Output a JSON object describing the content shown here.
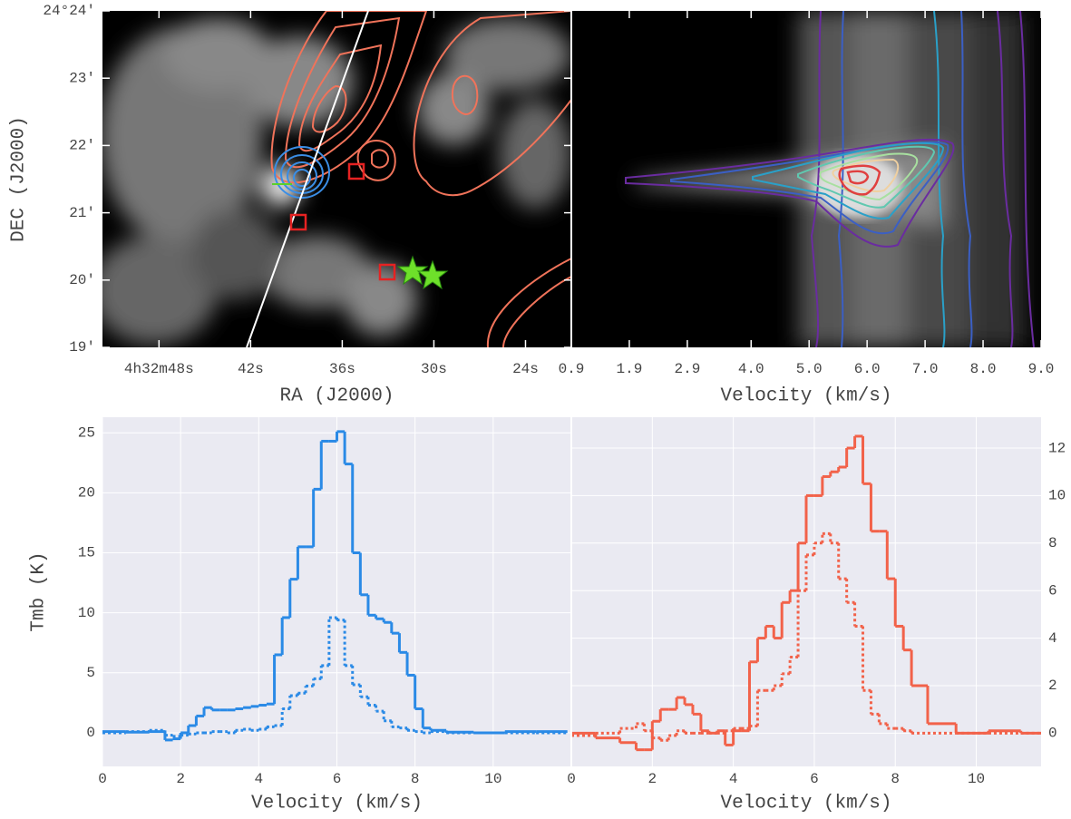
{
  "chart_data": [
    {
      "type": "image",
      "xlabel": "RA (J2000)",
      "ylabel": "DEC (J2000)",
      "xlim": [
        51.7,
        21.0
      ],
      "xticks": [
        {
          "value": 48,
          "label": "4h32m48s"
        },
        {
          "value": 42,
          "label": "42s"
        },
        {
          "value": 36,
          "label": "36s"
        },
        {
          "value": 30,
          "label": "30s"
        },
        {
          "value": 24,
          "label": "24s"
        }
      ],
      "ylim": [
        19,
        24
      ],
      "yticks": [
        {
          "value": 24,
          "label": "24°24'"
        },
        {
          "value": 23,
          "label": "23'"
        },
        {
          "value": 22,
          "label": "22'"
        },
        {
          "value": 21,
          "label": "21'"
        },
        {
          "value": 20,
          "label": "20'"
        },
        {
          "value": 19,
          "label": "19'"
        }
      ]
    },
    {
      "type": "image",
      "xlabel": "Velocity (km/s)",
      "xlim": [
        0.9,
        9.0
      ],
      "xticks": [
        0.9,
        1.9,
        2.9,
        {
          "value": 4,
          "label": "4.0"
        },
        {
          "value": 5,
          "label": "5.0"
        },
        {
          "value": 6,
          "label": "6.0"
        },
        {
          "value": 7,
          "label": "7.0"
        },
        {
          "value": 8,
          "label": "8.0"
        },
        {
          "value": 9,
          "label": "9.0"
        }
      ]
    },
    {
      "type": "step",
      "xlabel": "Velocity (km/s)",
      "ylabel": "Tmb (K)",
      "grid": true,
      "xlim": [
        0,
        12
      ],
      "xticks": [
        0,
        2,
        4,
        6,
        8,
        10
      ],
      "ylim": [
        -2.8,
        26.3
      ],
      "yticks": [
        0,
        5,
        10,
        15,
        20,
        25
      ],
      "x": [
        0.3,
        0.9,
        1.5,
        1.7,
        1.9,
        2.1,
        2.3,
        2.5,
        2.7,
        2.9,
        3.1,
        3.3,
        3.5,
        3.7,
        3.9,
        4.1,
        4.3,
        4.5,
        4.7,
        4.9,
        5.1,
        5.3,
        5.5,
        5.7,
        5.9,
        6.1,
        6.3,
        6.5,
        6.7,
        6.9,
        7.1,
        7.3,
        7.5,
        7.7,
        7.9,
        8.1,
        8.3,
        8.5,
        9.1,
        9.9,
        10.7,
        11.5
      ],
      "series": [
        {
          "color": "#2a8ae6",
          "linestyle": "solid",
          "values": [
            0.1,
            0.05,
            0.1,
            -0.6,
            -0.5,
            0.0,
            0.6,
            1.4,
            2.1,
            1.9,
            1.9,
            1.9,
            2.0,
            2.1,
            2.2,
            2.3,
            2.4,
            6.5,
            9.6,
            12.8,
            15.5,
            15.5,
            20.3,
            24.3,
            24.3,
            25.1,
            22.4,
            15.0,
            11.5,
            9.8,
            9.5,
            9.2,
            8.3,
            6.7,
            4.8,
            2.0,
            0.4,
            0.2,
            0.05,
            0.0,
            0.1,
            0.1
          ]
        },
        {
          "color": "#2a8ae6",
          "linestyle": "dotted",
          "values": [
            0.0,
            0.1,
            0.2,
            -0.2,
            -0.3,
            -0.2,
            -0.1,
            0.0,
            0.0,
            0.1,
            0.1,
            0.0,
            0.2,
            0.3,
            0.2,
            0.3,
            0.5,
            0.6,
            2.0,
            3.1,
            3.3,
            3.9,
            4.5,
            5.6,
            9.6,
            9.4,
            5.6,
            4.0,
            3.0,
            2.3,
            1.8,
            1.0,
            0.5,
            0.4,
            0.2,
            0.1,
            0.0,
            0.1,
            0.0,
            0.0,
            0.0,
            0.0
          ]
        }
      ]
    },
    {
      "type": "step",
      "xlabel": "Velocity (km/s)",
      "grid": true,
      "xlim": [
        0,
        11.6
      ],
      "xticks": [
        0,
        2,
        4,
        6,
        8,
        10
      ],
      "y2lim": [
        -1.4,
        13.3
      ],
      "y2ticks": [
        0,
        2,
        4,
        6,
        8,
        10,
        12
      ],
      "x": [
        0.3,
        0.9,
        1.5,
        1.7,
        1.9,
        2.1,
        2.3,
        2.5,
        2.7,
        2.9,
        3.1,
        3.3,
        3.5,
        3.7,
        3.9,
        4.1,
        4.3,
        4.5,
        4.7,
        4.9,
        5.1,
        5.3,
        5.5,
        5.7,
        5.9,
        6.1,
        6.3,
        6.5,
        6.7,
        6.9,
        7.1,
        7.3,
        7.5,
        7.7,
        7.9,
        8.1,
        8.3,
        8.5,
        9.1,
        9.9,
        10.7,
        11.5
      ],
      "series": [
        {
          "color": "#f2624a",
          "linestyle": "solid",
          "axis": "y2",
          "values": [
            0.0,
            -0.2,
            -0.4,
            -0.7,
            -0.7,
            0.5,
            1.0,
            1.0,
            1.5,
            1.2,
            0.8,
            0.1,
            0.0,
            0.1,
            -0.5,
            0.1,
            0.1,
            3.0,
            4.0,
            4.5,
            4.0,
            5.5,
            6.0,
            8.0,
            10.0,
            10.0,
            10.8,
            11.0,
            11.2,
            12.0,
            12.5,
            10.5,
            8.5,
            8.5,
            6.5,
            4.5,
            3.5,
            2.0,
            0.4,
            0.0,
            0.1,
            0.0
          ]
        },
        {
          "color": "#f2624a",
          "linestyle": "dotted",
          "axis": "y2",
          "values": [
            -0.1,
            0.0,
            0.2,
            0.4,
            0.1,
            -0.2,
            -0.3,
            -0.1,
            0.1,
            0.0,
            0.0,
            0.0,
            0.0,
            0.0,
            0.1,
            0.2,
            0.2,
            0.3,
            1.8,
            1.8,
            2.0,
            2.5,
            3.2,
            6.0,
            7.5,
            8.0,
            8.4,
            8.0,
            6.5,
            5.5,
            4.5,
            1.8,
            0.8,
            0.4,
            0.2,
            0.2,
            0.1,
            0.0,
            0.0,
            0.0,
            0.0,
            0.0
          ]
        }
      ]
    }
  ]
}
